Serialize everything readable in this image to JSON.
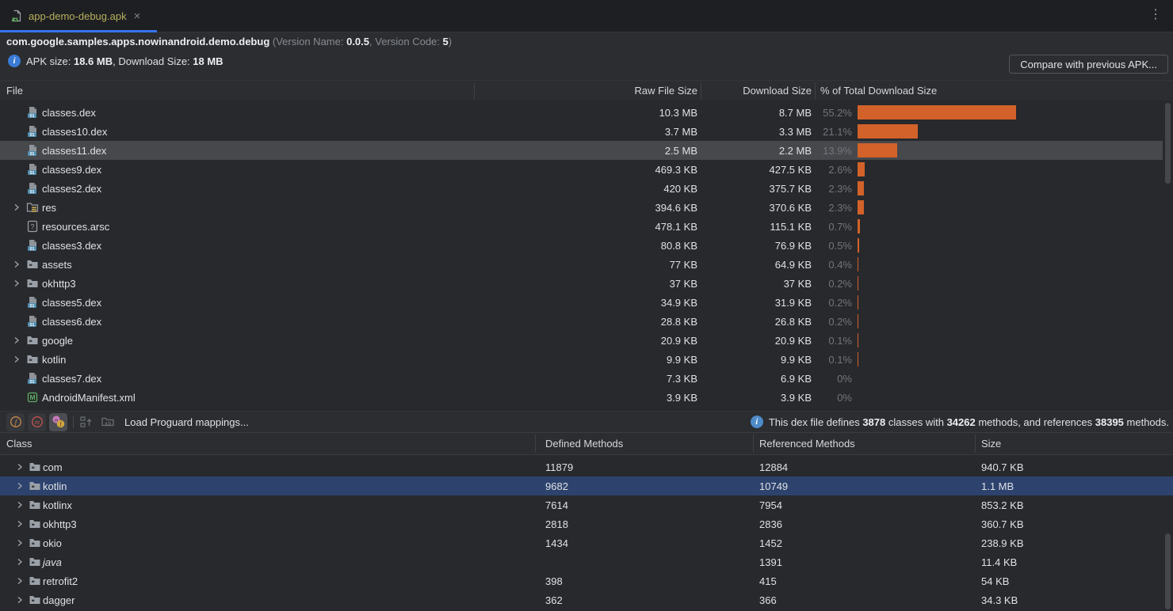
{
  "tab": {
    "title": "app-demo-debug.apk",
    "close_glyph": "×",
    "menu_glyph": "⋮"
  },
  "header": {
    "package": "com.google.samples.apps.nowinandroid.demo.debug",
    "version_prefix": " (Version Name: ",
    "version_name": "0.0.5",
    "version_mid": ", Version Code: ",
    "version_code": "5",
    "version_suffix": ")",
    "apk_size_label": "APK size: ",
    "apk_size": "18.6 MB",
    "download_label": ", Download Size: ",
    "download_size": "18 MB",
    "compare_button": "Compare with previous APK..."
  },
  "files": {
    "columns": {
      "file": "File",
      "raw": "Raw File Size",
      "download": "Download Size",
      "pct": "% of Total Download Size"
    },
    "rows": [
      {
        "name": "classes.dex",
        "icon": "dex",
        "expandable": false,
        "raw": "10.3 MB",
        "download": "8.7 MB",
        "pct_label": "55.2%",
        "pct": 55.2
      },
      {
        "name": "classes10.dex",
        "icon": "dex",
        "expandable": false,
        "raw": "3.7 MB",
        "download": "3.3 MB",
        "pct_label": "21.1%",
        "pct": 21.1
      },
      {
        "name": "classes11.dex",
        "icon": "dex",
        "expandable": false,
        "raw": "2.5 MB",
        "download": "2.2 MB",
        "pct_label": "13.9%",
        "pct": 13.9,
        "state": "highlighted"
      },
      {
        "name": "classes9.dex",
        "icon": "dex",
        "expandable": false,
        "raw": "469.3 KB",
        "download": "427.5 KB",
        "pct_label": "2.6%",
        "pct": 2.6
      },
      {
        "name": "classes2.dex",
        "icon": "dex",
        "expandable": false,
        "raw": "420 KB",
        "download": "375.7 KB",
        "pct_label": "2.3%",
        "pct": 2.3
      },
      {
        "name": "res",
        "icon": "folder-res",
        "expandable": true,
        "raw": "394.6 KB",
        "download": "370.6 KB",
        "pct_label": "2.3%",
        "pct": 2.3
      },
      {
        "name": "resources.arsc",
        "icon": "arsc",
        "expandable": false,
        "raw": "478.1 KB",
        "download": "115.1 KB",
        "pct_label": "0.7%",
        "pct": 0.7
      },
      {
        "name": "classes3.dex",
        "icon": "dex",
        "expandable": false,
        "raw": "80.8 KB",
        "download": "76.9 KB",
        "pct_label": "0.5%",
        "pct": 0.5
      },
      {
        "name": "assets",
        "icon": "folder",
        "expandable": true,
        "raw": "77 KB",
        "download": "64.9 KB",
        "pct_label": "0.4%",
        "pct": 0.4
      },
      {
        "name": "okhttp3",
        "icon": "folder",
        "expandable": true,
        "raw": "37 KB",
        "download": "37 KB",
        "pct_label": "0.2%",
        "pct": 0.2
      },
      {
        "name": "classes5.dex",
        "icon": "dex",
        "expandable": false,
        "raw": "34.9 KB",
        "download": "31.9 KB",
        "pct_label": "0.2%",
        "pct": 0.2
      },
      {
        "name": "classes6.dex",
        "icon": "dex",
        "expandable": false,
        "raw": "28.8 KB",
        "download": "26.8 KB",
        "pct_label": "0.2%",
        "pct": 0.2
      },
      {
        "name": "google",
        "icon": "folder",
        "expandable": true,
        "raw": "20.9 KB",
        "download": "20.9 KB",
        "pct_label": "0.1%",
        "pct": 0.1
      },
      {
        "name": "kotlin",
        "icon": "folder",
        "expandable": true,
        "raw": "9.9 KB",
        "download": "9.9 KB",
        "pct_label": "0.1%",
        "pct": 0.1
      },
      {
        "name": "classes7.dex",
        "icon": "dex",
        "expandable": false,
        "raw": "7.3 KB",
        "download": "6.9 KB",
        "pct_label": "0%",
        "pct": 0
      },
      {
        "name": "AndroidManifest.xml",
        "icon": "manifest",
        "expandable": false,
        "raw": "3.9 KB",
        "download": "3.9 KB",
        "pct_label": "0%",
        "pct": 0
      }
    ]
  },
  "toolbar": {
    "load_mappings": "Load Proguard mappings...",
    "info": {
      "t1": "This dex file defines ",
      "classes": "3878",
      "t2": " classes with ",
      "methods": "34262",
      "t3": " methods, and references ",
      "references": "38395",
      "t4": " methods."
    }
  },
  "classes": {
    "columns": {
      "class": "Class",
      "defined": "Defined Methods",
      "referenced": "Referenced Methods",
      "size": "Size"
    },
    "rows": [
      {
        "name": "com",
        "icon": "folder",
        "expandable": true,
        "defined": "11879",
        "referenced": "12884",
        "size": "940.7 KB"
      },
      {
        "name": "kotlin",
        "icon": "folder",
        "expandable": true,
        "defined": "9682",
        "referenced": "10749",
        "size": "1.1 MB",
        "state": "selected"
      },
      {
        "name": "kotlinx",
        "icon": "folder",
        "expandable": true,
        "defined": "7614",
        "referenced": "7954",
        "size": "853.2 KB"
      },
      {
        "name": "okhttp3",
        "icon": "folder",
        "expandable": true,
        "defined": "2818",
        "referenced": "2836",
        "size": "360.7 KB"
      },
      {
        "name": "okio",
        "icon": "folder",
        "expandable": true,
        "defined": "1434",
        "referenced": "1452",
        "size": "238.9 KB"
      },
      {
        "name": "java",
        "icon": "folder",
        "expandable": true,
        "defined": "",
        "referenced": "1391",
        "size": "11.4 KB",
        "style": "italic"
      },
      {
        "name": "retrofit2",
        "icon": "folder",
        "expandable": true,
        "defined": "398",
        "referenced": "415",
        "size": "54 KB"
      },
      {
        "name": "dagger",
        "icon": "folder",
        "expandable": true,
        "defined": "362",
        "referenced": "366",
        "size": "34.3 KB"
      }
    ]
  },
  "colors": {
    "bar_orange": "#d2622a",
    "selection_blue": "#2d436e",
    "highlight_gray": "#46484c",
    "tab_underline": "#3574f0",
    "tab_title": "#b5af5d"
  }
}
